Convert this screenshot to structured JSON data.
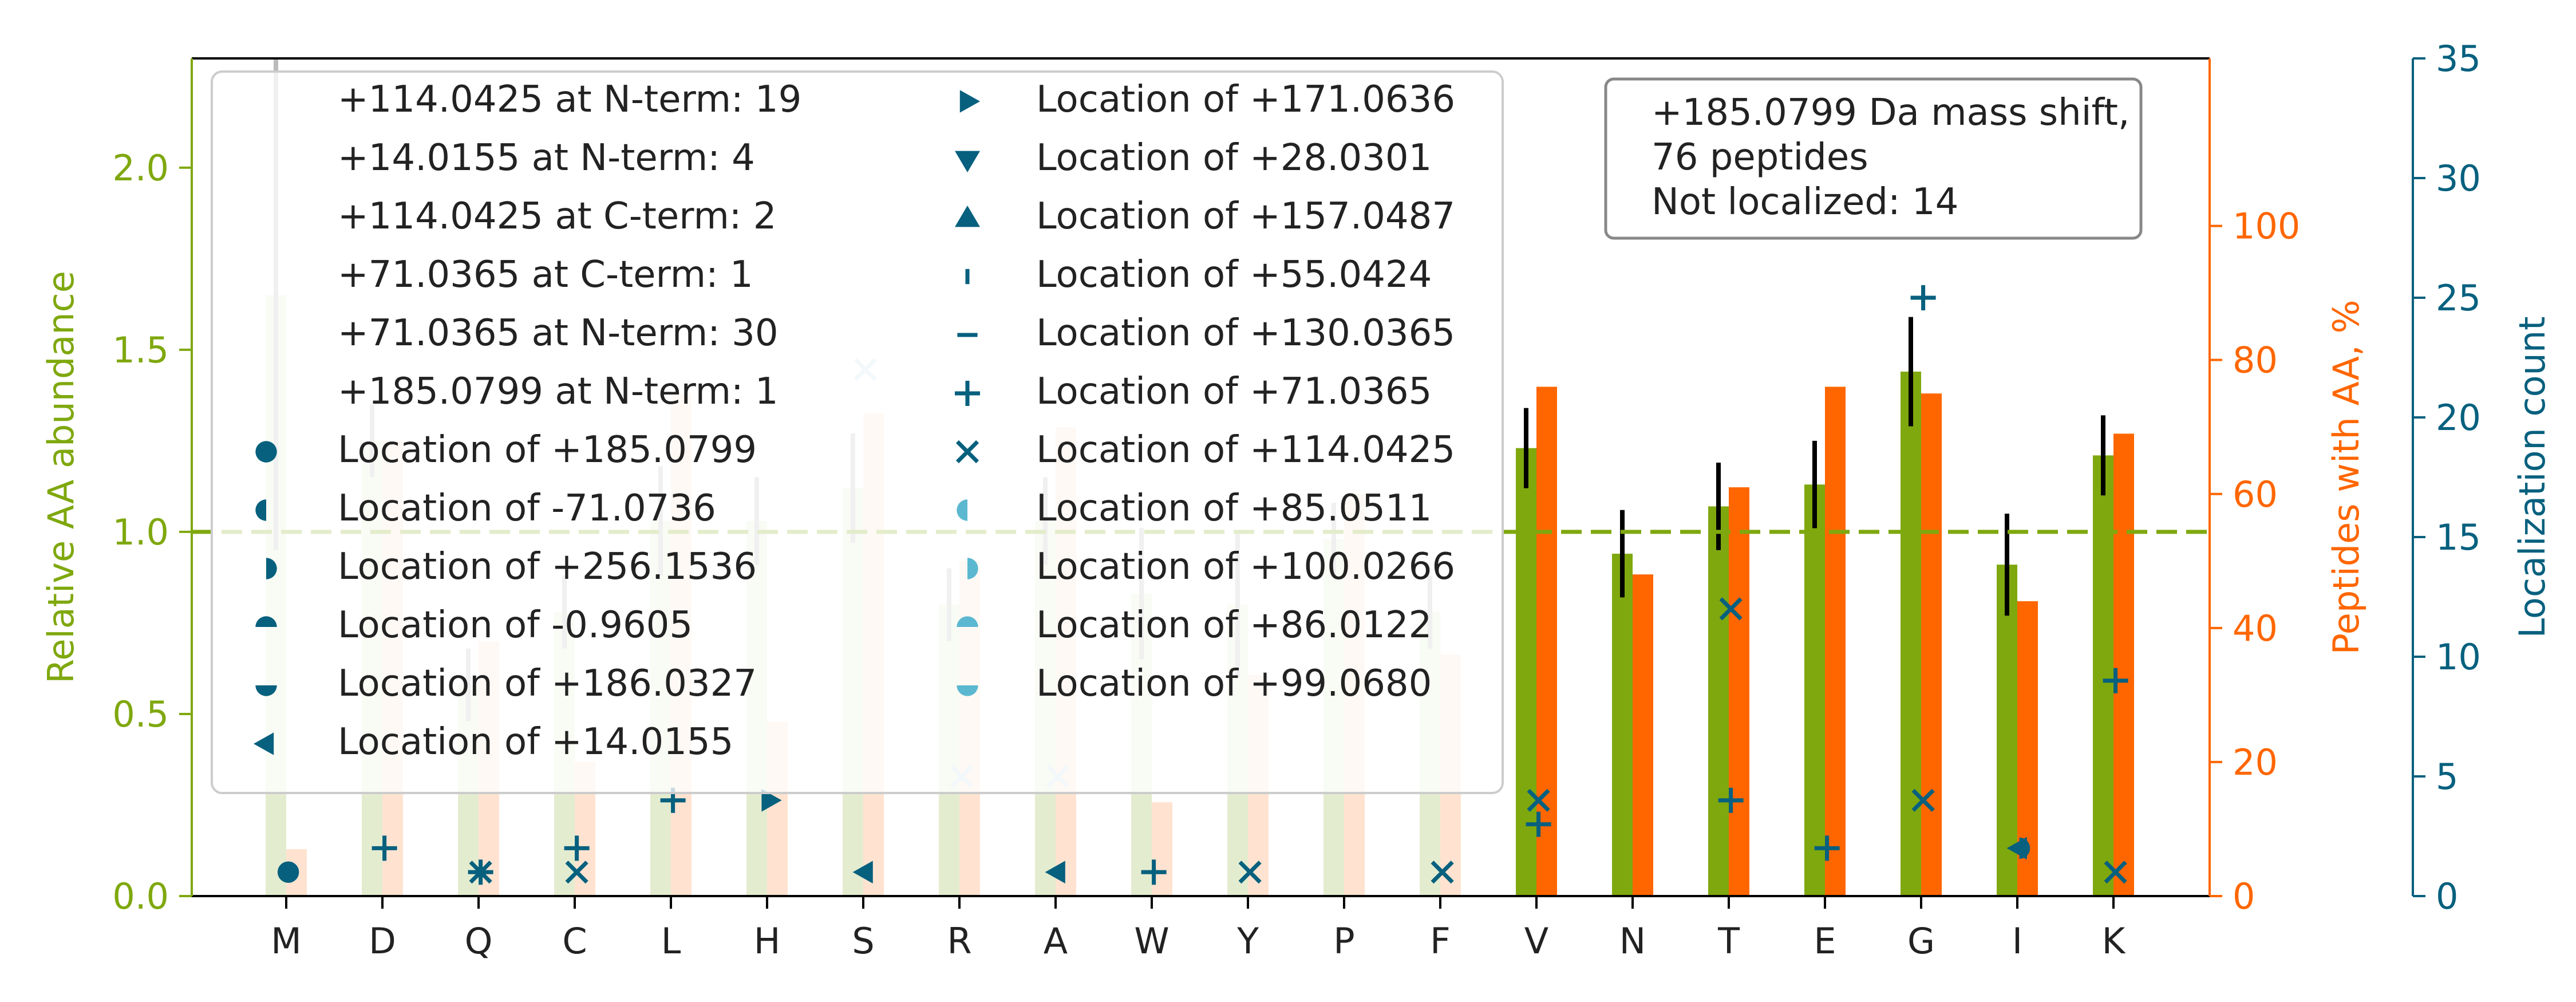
{
  "chart_data": {
    "type": "bar",
    "categories": [
      "M",
      "D",
      "Q",
      "C",
      "L",
      "H",
      "S",
      "R",
      "A",
      "W",
      "Y",
      "P",
      "F",
      "V",
      "N",
      "T",
      "E",
      "G",
      "I",
      "K"
    ],
    "ylabel_left": "Relative AA abundance",
    "ylabel_right1": "Peptides with AA, %",
    "ylabel_right2": "Localization count",
    "ylim_left": [
      0,
      2.3
    ],
    "ylim_right1": [
      0,
      125
    ],
    "ylim_right2": [
      0,
      35
    ],
    "ticks_left": [
      "0.0",
      "0.5",
      "1.0",
      "1.5",
      "2.0"
    ],
    "ticks_right1": [
      "0",
      "20",
      "40",
      "60",
      "80",
      "100"
    ],
    "ticks_right2": [
      "0",
      "5",
      "10",
      "15",
      "20",
      "25",
      "30",
      "35"
    ],
    "reference_line": 1.0,
    "colors": {
      "abundance": "#7fa80e",
      "peptides": "#ff6600",
      "localization": "#06607e",
      "localization_light": "#5bb8d0",
      "faded_abundance": "#e4ecd0",
      "faded_peptides": "#ffe3d0",
      "faded_errorbar": "#bbbbbb"
    },
    "series": [
      {
        "name": "abundance",
        "values": [
          1.65,
          1.25,
          0.58,
          0.78,
          1.03,
          1.03,
          1.12,
          0.8,
          1.03,
          0.83,
          0.8,
          0.98,
          0.78,
          1.23,
          0.94,
          1.07,
          1.13,
          1.44,
          0.91,
          1.21
        ],
        "errors": [
          0.7,
          0.1,
          0.1,
          0.1,
          0.15,
          0.12,
          0.15,
          0.1,
          0.12,
          0.18,
          0.2,
          0.1,
          0.1,
          0.11,
          0.12,
          0.12,
          0.12,
          0.15,
          0.14,
          0.11
        ]
      },
      {
        "name": "peptides",
        "values": [
          7,
          68,
          38,
          20,
          75,
          26,
          72,
          50,
          70,
          14,
          33,
          60,
          36,
          76,
          48,
          61,
          76,
          75,
          44,
          69
        ]
      }
    ],
    "faded": [
      "M",
      "D",
      "Q",
      "C",
      "L",
      "H",
      "S",
      "R",
      "A",
      "W",
      "Y",
      "P",
      "F"
    ],
    "localizations": [
      {
        "cat": "M",
        "value": 1,
        "marker": "circle"
      },
      {
        "cat": "D",
        "value": 2,
        "marker": "plus"
      },
      {
        "cat": "Q",
        "value": 1,
        "marker": "x"
      },
      {
        "cat": "Q",
        "value": 1,
        "marker": "plus"
      },
      {
        "cat": "C",
        "value": 2,
        "marker": "plus"
      },
      {
        "cat": "C",
        "value": 1,
        "marker": "x"
      },
      {
        "cat": "L",
        "value": 4,
        "marker": "plus"
      },
      {
        "cat": "H",
        "value": 4,
        "marker": "tri-right"
      },
      {
        "cat": "S",
        "value": 1,
        "marker": "tri-left"
      },
      {
        "cat": "S",
        "value": 22,
        "marker": "x",
        "faded": true
      },
      {
        "cat": "R",
        "value": 5,
        "marker": "x",
        "faded": true
      },
      {
        "cat": "A",
        "value": 1,
        "marker": "tri-left"
      },
      {
        "cat": "A",
        "value": 5,
        "marker": "x",
        "faded": true
      },
      {
        "cat": "W",
        "value": 1,
        "marker": "plus"
      },
      {
        "cat": "Y",
        "value": 1,
        "marker": "x"
      },
      {
        "cat": "F",
        "value": 1,
        "marker": "x"
      },
      {
        "cat": "V",
        "value": 4,
        "marker": "x"
      },
      {
        "cat": "V",
        "value": 3,
        "marker": "plus"
      },
      {
        "cat": "N",
        "value": 0,
        "marker": "none"
      },
      {
        "cat": "T",
        "value": 12,
        "marker": "x"
      },
      {
        "cat": "T",
        "value": 4,
        "marker": "plus"
      },
      {
        "cat": "E",
        "value": 2,
        "marker": "plus"
      },
      {
        "cat": "G",
        "value": 25,
        "marker": "plus"
      },
      {
        "cat": "G",
        "value": 4,
        "marker": "x"
      },
      {
        "cat": "I",
        "value": 2,
        "marker": "tri-left"
      },
      {
        "cat": "I",
        "value": 2,
        "marker": "semi-right"
      },
      {
        "cat": "K",
        "value": 9,
        "marker": "plus"
      },
      {
        "cat": "K",
        "value": 1,
        "marker": "x"
      }
    ],
    "legend_col1": [
      {
        "label": "+114.0425 at N-term: 19",
        "marker": "none"
      },
      {
        "label": "+14.0155 at N-term: 4",
        "marker": "none"
      },
      {
        "label": "+114.0425 at C-term: 2",
        "marker": "none"
      },
      {
        "label": "+71.0365 at C-term: 1",
        "marker": "none"
      },
      {
        "label": "+71.0365 at N-term: 30",
        "marker": "none"
      },
      {
        "label": "+185.0799 at N-term: 1",
        "marker": "none"
      },
      {
        "label": "Location of +185.0799",
        "marker": "circle"
      },
      {
        "label": "Location of -71.0736",
        "marker": "semi-left"
      },
      {
        "label": "Location of +256.1536",
        "marker": "semi-right"
      },
      {
        "label": "Location of -0.9605",
        "marker": "semi-top"
      },
      {
        "label": "Location of +186.0327",
        "marker": "semi-bottom"
      },
      {
        "label": "Location of +14.0155",
        "marker": "tri-left"
      }
    ],
    "legend_col2": [
      {
        "label": "Location of +171.0636",
        "marker": "tri-right"
      },
      {
        "label": "Location of +28.0301",
        "marker": "tri-down"
      },
      {
        "label": "Location of +157.0487",
        "marker": "tri-up"
      },
      {
        "label": "Location of +55.0424",
        "marker": "vline"
      },
      {
        "label": "Location of +130.0365",
        "marker": "hline"
      },
      {
        "label": "Location of +71.0365",
        "marker": "plus"
      },
      {
        "label": "Location of +114.0425",
        "marker": "x"
      },
      {
        "label": "Location of +85.0511",
        "marker": "semi-left-light"
      },
      {
        "label": "Location of +100.0266",
        "marker": "semi-right-light"
      },
      {
        "label": "Location of +86.0122",
        "marker": "semi-top-light"
      },
      {
        "label": "Location of +99.0680",
        "marker": "semi-bottom-light"
      }
    ],
    "info_box": [
      "+185.0799 Da mass shift,",
      "76 peptides",
      "Not localized: 14"
    ]
  }
}
